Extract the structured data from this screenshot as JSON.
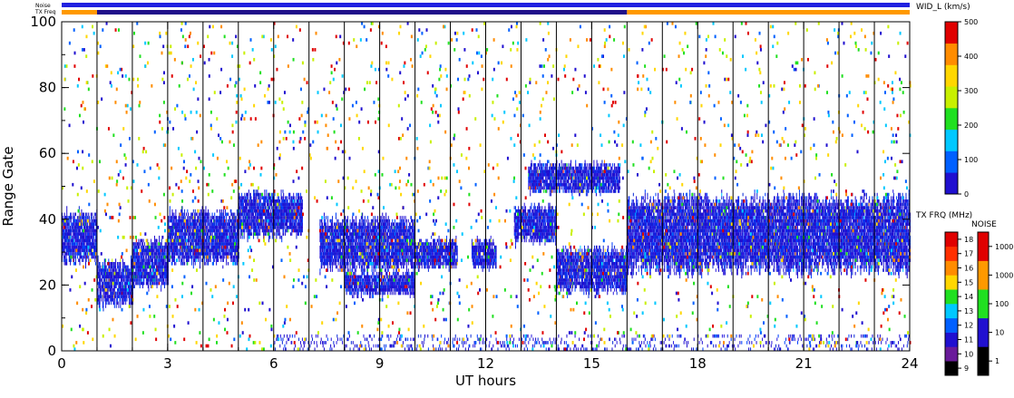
{
  "chart_data": {
    "type": "heatmap",
    "xlabel": "UT hours",
    "ylabel": "Range Gate",
    "xlim": [
      0,
      24
    ],
    "ylim": [
      0,
      100
    ],
    "x_ticks": [
      {
        "value": 0,
        "label": "0"
      },
      {
        "value": 3,
        "label": "3"
      },
      {
        "value": 6,
        "label": "6"
      },
      {
        "value": 9,
        "label": "9"
      },
      {
        "value": 12,
        "label": "12"
      },
      {
        "value": 15,
        "label": "15"
      },
      {
        "value": 18,
        "label": "18"
      },
      {
        "value": 21,
        "label": "21"
      },
      {
        "value": 24,
        "label": "24"
      }
    ],
    "y_ticks": [
      {
        "value": 0,
        "label": "0"
      },
      {
        "value": 20,
        "label": "20"
      },
      {
        "value": 40,
        "label": "40"
      },
      {
        "value": 60,
        "label": "60"
      },
      {
        "value": 80,
        "label": "80"
      },
      {
        "value": 100,
        "label": "100"
      }
    ],
    "scan_markers_hours": [
      1,
      2,
      3,
      4,
      5,
      6,
      7,
      8,
      9,
      10,
      11,
      12,
      13,
      14,
      15,
      16,
      17,
      18,
      19,
      20,
      21,
      22,
      23
    ],
    "strips": {
      "noise_label": "Noise",
      "txfreq_label": "TX Freq",
      "noise_color": "#2020e0",
      "txfreq_segments": [
        {
          "start": 0,
          "end": 1,
          "color": "#ff9900"
        },
        {
          "start": 1,
          "end": 16,
          "color": "#20108a"
        },
        {
          "start": 16,
          "end": 24,
          "color": "#ff9900"
        }
      ]
    },
    "echo_regions": [
      {
        "x0": 0,
        "x1": 1,
        "y_center": 34,
        "half_width": 6
      },
      {
        "x0": 1,
        "x1": 2,
        "y_center": 20,
        "half_width": 5
      },
      {
        "x0": 2,
        "x1": 3,
        "y_center": 26,
        "half_width": 5
      },
      {
        "x0": 3,
        "x1": 5,
        "y_center": 34,
        "half_width": 6
      },
      {
        "x0": 5,
        "x1": 6.8,
        "y_center": 41,
        "half_width": 5
      },
      {
        "x0": 7.3,
        "x1": 10,
        "y_center": 32,
        "half_width": 6
      },
      {
        "x0": 10,
        "x1": 11.2,
        "y_center": 29,
        "half_width": 3
      },
      {
        "x0": 8,
        "x1": 10,
        "y_center": 20,
        "half_width": 2
      },
      {
        "x0": 11.6,
        "x1": 12.3,
        "y_center": 29,
        "half_width": 3
      },
      {
        "x0": 12.8,
        "x1": 14,
        "y_center": 38,
        "half_width": 4
      },
      {
        "x0": 14,
        "x1": 16,
        "y_center": 24,
        "half_width": 5
      },
      {
        "x0": 13.2,
        "x1": 15.8,
        "y_center": 52,
        "half_width": 3
      },
      {
        "x0": 16,
        "x1": 24,
        "y_center": 35,
        "half_width": 9
      }
    ],
    "legends": [
      {
        "title": "WID_L (km/s)",
        "range": [
          0,
          500
        ],
        "tick_labels": [
          "0",
          "100",
          "200",
          "300",
          "400",
          "500"
        ],
        "colors": [
          "#2010d0",
          "#0060ff",
          "#00c8ff",
          "#20e020",
          "#c8f000",
          "#ffd700",
          "#ff8c00",
          "#e00000"
        ]
      },
      {
        "title": "TX FRQ (MHz)",
        "range": [
          9,
          18
        ],
        "tick_labels": [
          "9",
          "10",
          "11",
          "12",
          "13",
          "14",
          "15",
          "16",
          "17",
          "18"
        ],
        "colors": [
          "#000000",
          "#6a1b9a",
          "#2010d0",
          "#0060ff",
          "#00c8ff",
          "#20e020",
          "#ffd700",
          "#ff8c00",
          "#ff3000",
          "#e00000"
        ]
      },
      {
        "title": "NOISE",
        "tick_labels": [
          "1",
          "10",
          "100",
          "1000",
          "10000"
        ],
        "colors": [
          "#000000",
          "#2010d0",
          "#20e020",
          "#ff9900",
          "#e00000"
        ]
      }
    ]
  }
}
